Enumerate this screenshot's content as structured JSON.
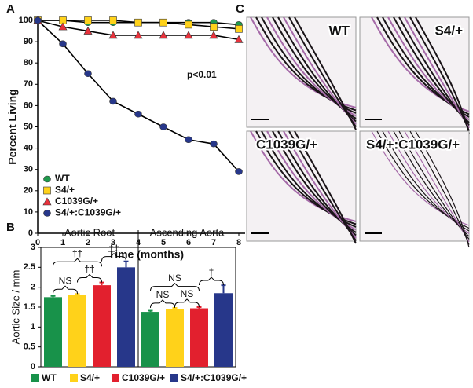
{
  "panels": {
    "a": "A",
    "b": "B",
    "c": "C"
  },
  "chart_data": [
    {
      "type": "line",
      "x_label": "Time (months)",
      "y_label": "Percent Living",
      "annotation": "p<0.01",
      "x": [
        0,
        1,
        2,
        3,
        4,
        5,
        6,
        7,
        8
      ],
      "series": [
        {
          "name": "WT",
          "color": "#1f9a4c",
          "marker": "circle",
          "values": [
            100,
            100,
            99,
            99,
            99,
            99,
            99,
            99,
            98
          ]
        },
        {
          "name": "S4/+",
          "color": "#ffd21a",
          "marker": "square",
          "values": [
            100,
            100,
            100,
            100,
            99,
            99,
            98,
            97,
            96
          ]
        },
        {
          "name": "C1039G/+",
          "color": "#e8323c",
          "marker": "triangle",
          "values": [
            100,
            97,
            95,
            93,
            93,
            93,
            93,
            93,
            91
          ]
        },
        {
          "name": "S4/+:C1039G/+",
          "color": "#27378a",
          "marker": "circle",
          "values": [
            100,
            89,
            75,
            62,
            56,
            50,
            44,
            42,
            29
          ]
        }
      ],
      "xlim": [
        0,
        8
      ],
      "xticks": [
        0,
        1,
        2,
        3,
        4,
        5,
        6,
        7,
        8
      ],
      "ylim": [
        0,
        100
      ],
      "yticks": [
        0,
        10,
        20,
        30,
        40,
        50,
        60,
        70,
        80,
        90,
        100
      ]
    },
    {
      "type": "bar",
      "y_label": "Aortic Size / mm",
      "categories": [
        "Aortic Root",
        "Ascending Aorta"
      ],
      "series": [
        {
          "name": "WT",
          "color": "#18924a",
          "values": [
            1.75,
            1.38
          ],
          "errors": [
            0.03,
            0.03
          ]
        },
        {
          "name": "S4/+",
          "color": "#ffd21a",
          "values": [
            1.8,
            1.45
          ],
          "errors": [
            0.03,
            0.03
          ]
        },
        {
          "name": "C1039G/+",
          "color": "#e2202e",
          "values": [
            2.05,
            1.47
          ],
          "errors": [
            0.07,
            0.03
          ]
        },
        {
          "name": "S4/+:C1039G/+",
          "color": "#27378a",
          "values": [
            2.5,
            1.85
          ],
          "errors": [
            0.15,
            0.2
          ]
        }
      ],
      "comparisons": [
        {
          "category": 0,
          "from": 0,
          "to": 1,
          "label": "NS"
        },
        {
          "category": 0,
          "from": 1,
          "to": 2,
          "label": "††"
        },
        {
          "category": 0,
          "from": 0,
          "to": 2,
          "label": "††"
        },
        {
          "category": 0,
          "from": 2,
          "to": 3,
          "label": "††"
        },
        {
          "category": 1,
          "from": 0,
          "to": 1,
          "label": "NS"
        },
        {
          "category": 1,
          "from": 1,
          "to": 2,
          "label": "NS"
        },
        {
          "category": 1,
          "from": 0,
          "to": 2,
          "label": "NS"
        },
        {
          "category": 1,
          "from": 2,
          "to": 3,
          "label": "†"
        }
      ],
      "ylim": [
        0,
        3
      ],
      "yticks": [
        0,
        0.5,
        1,
        1.5,
        2,
        2.5,
        3
      ]
    }
  ],
  "images": [
    {
      "label": "WT"
    },
    {
      "label": "S4/+"
    },
    {
      "label": "C1039G/+"
    },
    {
      "label": "S4/+:C1039G/+"
    }
  ]
}
